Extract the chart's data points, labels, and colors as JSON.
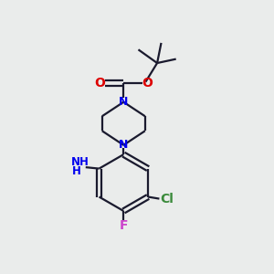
{
  "bg_color": "#eaeceb",
  "bond_color": "#1a1a2e",
  "N_color": "#0000ee",
  "O_color": "#dd0000",
  "Cl_color": "#3a8a3a",
  "F_color": "#cc44cc",
  "line_width": 1.6,
  "figsize": [
    3.0,
    3.0
  ],
  "dpi": 100,
  "xlim": [
    0,
    10
  ],
  "ylim": [
    0,
    10
  ]
}
